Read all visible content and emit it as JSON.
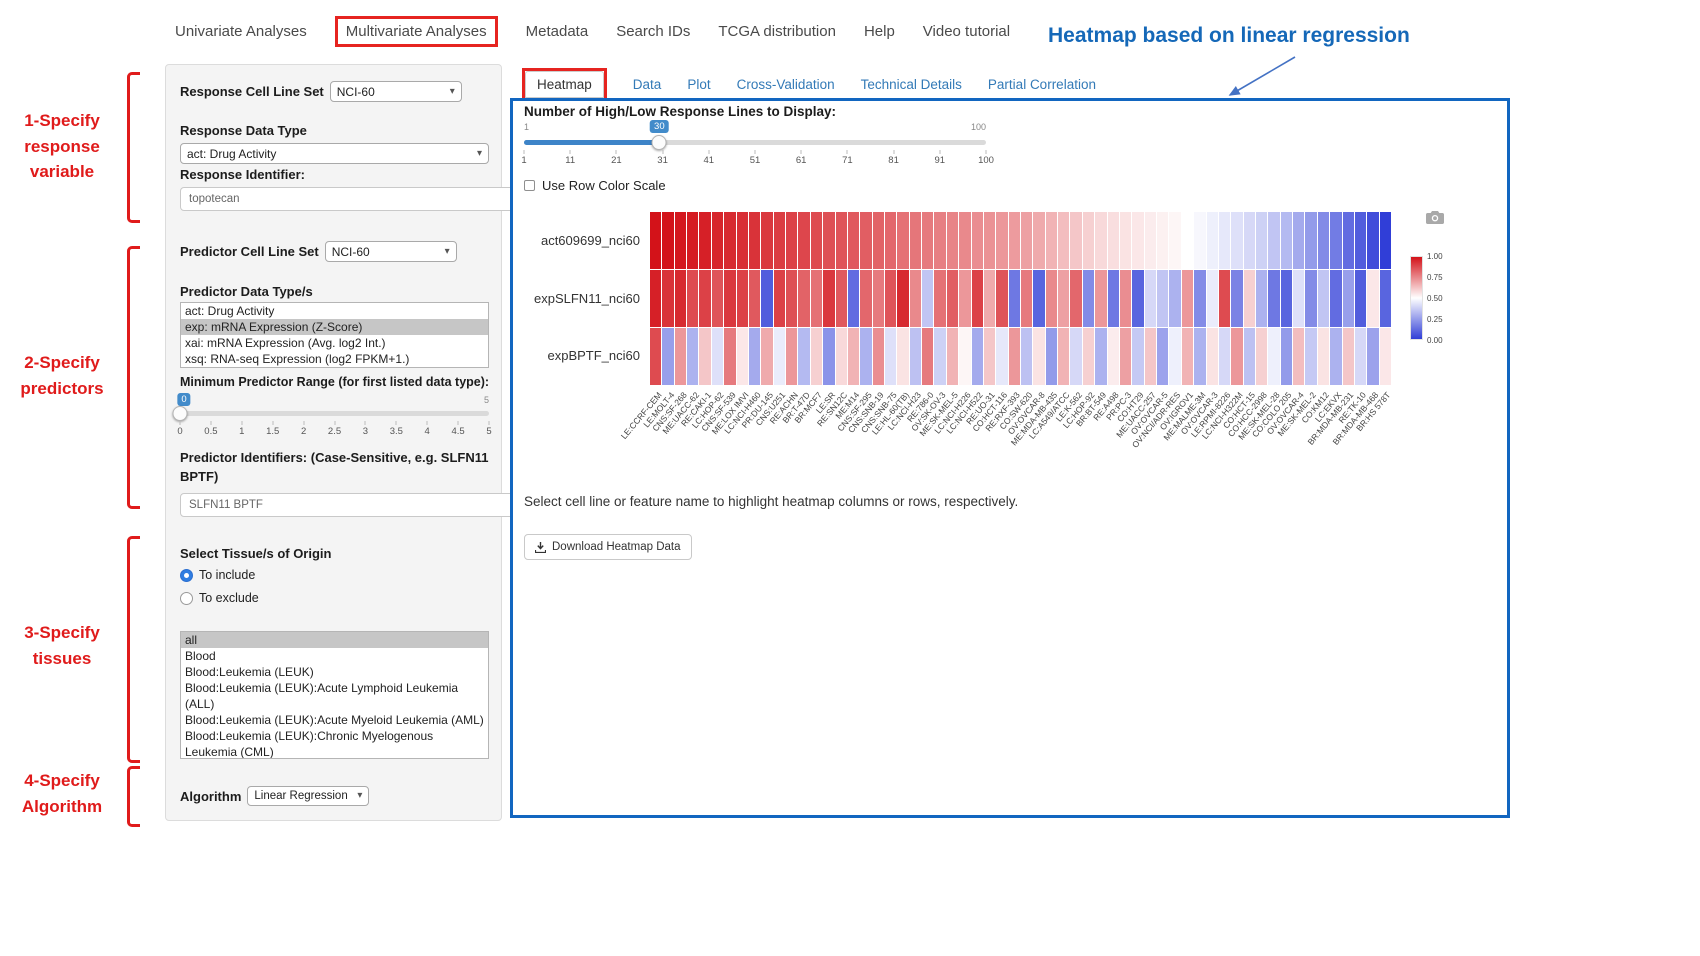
{
  "nav": {
    "items": [
      {
        "label": "Univariate Analyses"
      },
      {
        "label": "Multivariate Analyses"
      },
      {
        "label": "Metadata"
      },
      {
        "label": "Search IDs"
      },
      {
        "label": "TCGA distribution"
      },
      {
        "label": "Help"
      },
      {
        "label": "Video tutorial"
      }
    ]
  },
  "heading": {
    "text": "Heatmap based on linear regression",
    "color": "#1568b8"
  },
  "annotations": {
    "color": "#e01b1b",
    "items": [
      {
        "text": "1-Specify\nresponse\nvariable"
      },
      {
        "text": "2-Specify\npredictors"
      },
      {
        "text": "3-Specify\ntissues"
      },
      {
        "text": "4-Specify\nAlgorithm"
      }
    ]
  },
  "icons": {
    "chevron_down": "▾",
    "camera": "camera",
    "download": "download-arrow"
  },
  "form": {
    "response_cell_line_set": {
      "label": "Response Cell Line Set",
      "value": "NCI-60"
    },
    "response_data_type": {
      "label": "Response Data Type",
      "value": "act: Drug Activity"
    },
    "response_identifier": {
      "label": "Response Identifier:",
      "value": "topotecan"
    },
    "predictor_cell_line_set": {
      "label": "Predictor Cell Line Set",
      "value": "NCI-60"
    },
    "predictor_data_types": {
      "label": "Predictor Data Type/s",
      "options": [
        "act: Drug Activity",
        "exp: mRNA Expression (Z-Score)",
        "xai: mRNA Expression (Avg. log2 Int.)",
        "xsq: RNA-seq Expression (log2 FPKM+1.)"
      ],
      "selected_index": 1
    },
    "min_predictor_range": {
      "label": "Minimum Predictor Range (for first listed data type):",
      "value": 0,
      "min": 0,
      "max": 5,
      "ticks": [
        "0",
        "0.5",
        "1",
        "1.5",
        "2",
        "2.5",
        "3",
        "3.5",
        "4",
        "4.5",
        "5"
      ]
    },
    "predictor_identifiers": {
      "label": "Predictor Identifiers: (Case-Sensitive, e.g. SLFN11 BPTF)",
      "value": "SLFN11 BPTF"
    },
    "tissue_origin": {
      "label": "Select Tissue/s of Origin",
      "radios": [
        {
          "label": "To include",
          "selected": true
        },
        {
          "label": "To exclude",
          "selected": false
        }
      ],
      "options": [
        "all",
        "Blood",
        "Blood:Leukemia (LEUK)",
        "Blood:Leukemia (LEUK):Acute Lymphoid Leukemia (ALL)",
        "Blood:Leukemia (LEUK):Acute Myeloid Leukemia (AML)",
        "Blood:Leukemia (LEUK):Chronic Myelogenous Leukemia (CML)"
      ],
      "selected_index": 0
    },
    "algorithm": {
      "label": "Algorithm",
      "value": "Linear Regression"
    }
  },
  "main": {
    "tabs": [
      {
        "label": "Heatmap",
        "active": true
      },
      {
        "label": "Data",
        "active": false
      },
      {
        "label": "Plot",
        "active": false
      },
      {
        "label": "Cross-Validation",
        "active": false
      },
      {
        "label": "Technical Details",
        "active": false
      },
      {
        "label": "Partial Correlation",
        "active": false
      }
    ],
    "lines_slider": {
      "label": "Number of High/Low Response Lines to Display:",
      "value": 30,
      "min": 1,
      "max": 100,
      "ticks": [
        "1",
        "11",
        "21",
        "31",
        "41",
        "51",
        "61",
        "71",
        "81",
        "91",
        "100"
      ]
    },
    "row_color_scale": {
      "label": "Use Row Color Scale",
      "checked": false
    },
    "note": "Select cell line or feature name to highlight heatmap columns or rows, respectively.",
    "download_button": "Download Heatmap Data"
  },
  "chart_data": {
    "type": "heatmap",
    "rows": [
      "act609699_nci60",
      "expSLFN11_nci60",
      "expBPTF_nci60"
    ],
    "columns": [
      "LE:CCRF-CEM",
      "LE:MOLT-4",
      "CNS:SF-268",
      "ME:UACC-62",
      "RE:CAKI-1",
      "LC:HOP-62",
      "CNS:SF-539",
      "ME:LOX IMVI",
      "LC:NCI-H460",
      "PR:DU-145",
      "CNS:U251",
      "RE:ACHN",
      "BR:T-47D",
      "BR:MCF7",
      "LE:SR",
      "RE:SN12C",
      "ME:M14",
      "CNS:SF-295",
      "CNS:SNB-19",
      "CNS:SNB-75",
      "LE:HL-60(TB)",
      "LC:NCI-H23",
      "RE:786-0",
      "OV:SK-OV-3",
      "ME:SK-MEL-5",
      "LC:NCI-H226",
      "LC:NCI-H522",
      "RE:UO-31",
      "CO:HCT-116",
      "RE:RXF-393",
      "CO:SW-620",
      "OV:OVCAR-8",
      "ME:MDA-MB-435",
      "LC:A549/ATCC",
      "LE:K-562",
      "LC:HOP-92",
      "BR:BT-549",
      "RE:A498",
      "PR:PC-3",
      "CO:HT29",
      "ME:UACC-257",
      "OV:OVCAR-5",
      "OV:NCI/ADR-RES",
      "OV:IGROV1",
      "ME:MALME-3M",
      "OV:OVCAR-3",
      "LE:RPMI-8226",
      "LC:NCI-H322M",
      "CO:HCT-15",
      "CO:HCC-2998",
      "ME:SK-MEL-28",
      "CO:COLO 205",
      "OV:OVCAR-4",
      "ME:SK-MEL-2",
      "CO:KM12",
      "LC:EKVX",
      "BR:MDA-MB-231",
      "RE:TK-10",
      "BR:MDA-MB-468",
      "BR:HS 578T"
    ],
    "values": [
      [
        1.0,
        1.0,
        0.99,
        0.98,
        0.97,
        0.96,
        0.95,
        0.94,
        0.93,
        0.92,
        0.91,
        0.9,
        0.89,
        0.88,
        0.87,
        0.86,
        0.85,
        0.84,
        0.83,
        0.82,
        0.8,
        0.79,
        0.78,
        0.77,
        0.76,
        0.75,
        0.74,
        0.73,
        0.72,
        0.71,
        0.7,
        0.68,
        0.66,
        0.64,
        0.62,
        0.6,
        0.58,
        0.57,
        0.56,
        0.55,
        0.54,
        0.53,
        0.52,
        0.5,
        0.48,
        0.46,
        0.44,
        0.42,
        0.4,
        0.38,
        0.35,
        0.32,
        0.28,
        0.24,
        0.2,
        0.16,
        0.12,
        0.08,
        0.04,
        0.0
      ],
      [
        0.97,
        0.93,
        0.95,
        0.88,
        0.9,
        0.86,
        0.92,
        0.9,
        0.85,
        0.08,
        0.9,
        0.87,
        0.83,
        0.8,
        0.92,
        0.85,
        0.12,
        0.82,
        0.78,
        0.86,
        0.95,
        0.75,
        0.35,
        0.8,
        0.84,
        0.72,
        0.9,
        0.68,
        0.86,
        0.15,
        0.78,
        0.1,
        0.75,
        0.7,
        0.82,
        0.2,
        0.72,
        0.15,
        0.74,
        0.1,
        0.4,
        0.35,
        0.3,
        0.72,
        0.2,
        0.45,
        0.88,
        0.18,
        0.6,
        0.3,
        0.15,
        0.1,
        0.42,
        0.2,
        0.35,
        0.12,
        0.25,
        0.08,
        0.55,
        0.1
      ],
      [
        0.88,
        0.25,
        0.72,
        0.3,
        0.62,
        0.42,
        0.78,
        0.55,
        0.28,
        0.68,
        0.45,
        0.72,
        0.32,
        0.6,
        0.22,
        0.58,
        0.66,
        0.3,
        0.74,
        0.42,
        0.56,
        0.34,
        0.78,
        0.38,
        0.66,
        0.52,
        0.28,
        0.62,
        0.44,
        0.72,
        0.34,
        0.56,
        0.24,
        0.66,
        0.4,
        0.6,
        0.3,
        0.54,
        0.7,
        0.36,
        0.62,
        0.26,
        0.46,
        0.66,
        0.3,
        0.56,
        0.4,
        0.72,
        0.34,
        0.6,
        0.46,
        0.24,
        0.64,
        0.36,
        0.56,
        0.3,
        0.62,
        0.4,
        0.26,
        0.55
      ]
    ],
    "colorscale": {
      "min": 0,
      "max": 1,
      "high_color": "#d31219",
      "mid_color": "#ffffff",
      "low_color": "#303ed7",
      "legend_ticks": [
        "1.00",
        "0.75",
        "0.50",
        "0.25",
        "0.00"
      ],
      "legend_position": "right"
    },
    "title": "",
    "xlabel": "",
    "ylabel": ""
  }
}
